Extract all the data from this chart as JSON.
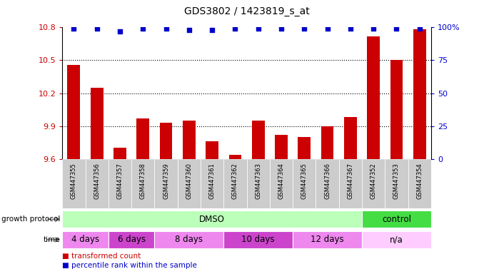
{
  "title": "GDS3802 / 1423819_s_at",
  "samples": [
    "GSM447355",
    "GSM447356",
    "GSM447357",
    "GSM447358",
    "GSM447359",
    "GSM447360",
    "GSM447361",
    "GSM447362",
    "GSM447363",
    "GSM447364",
    "GSM447365",
    "GSM447366",
    "GSM447367",
    "GSM447352",
    "GSM447353",
    "GSM447354"
  ],
  "bar_values": [
    10.46,
    10.25,
    9.7,
    9.97,
    9.93,
    9.95,
    9.76,
    9.64,
    9.95,
    9.82,
    9.8,
    9.9,
    9.98,
    10.72,
    10.5,
    10.78
  ],
  "percentile_values": [
    99,
    99,
    97,
    99,
    99,
    98,
    98,
    99,
    99,
    99,
    99,
    99,
    99,
    99,
    99,
    99
  ],
  "ylim_left": [
    9.6,
    10.8
  ],
  "ylim_right": [
    0,
    100
  ],
  "yticks_left": [
    9.6,
    9.9,
    10.2,
    10.5,
    10.8
  ],
  "yticks_right": [
    0,
    25,
    50,
    75,
    100
  ],
  "ytick_labels_right": [
    "0",
    "25",
    "50",
    "75",
    "100%"
  ],
  "bar_color": "#cc0000",
  "dot_color": "#0000cc",
  "bar_width": 0.55,
  "bg_color": "#ffffff",
  "tick_bg_color": "#cccccc",
  "growth_protocol_groups": [
    {
      "label": "DMSO",
      "start": 0,
      "end": 12,
      "color": "#bbffbb"
    },
    {
      "label": "control",
      "start": 13,
      "end": 15,
      "color": "#44dd44"
    }
  ],
  "time_groups": [
    {
      "label": "4 days",
      "start": 0,
      "end": 1,
      "color": "#ee88ee"
    },
    {
      "label": "6 days",
      "start": 2,
      "end": 3,
      "color": "#cc44cc"
    },
    {
      "label": "8 days",
      "start": 4,
      "end": 6,
      "color": "#ee88ee"
    },
    {
      "label": "10 days",
      "start": 7,
      "end": 9,
      "color": "#cc44cc"
    },
    {
      "label": "12 days",
      "start": 10,
      "end": 12,
      "color": "#ee88ee"
    },
    {
      "label": "n/a",
      "start": 13,
      "end": 15,
      "color": "#ffccff"
    }
  ],
  "legend_items": [
    {
      "label": "transformed count",
      "color": "#cc0000"
    },
    {
      "label": "percentile rank within the sample",
      "color": "#0000cc"
    }
  ],
  "growth_protocol_label": "growth protocol",
  "time_label": "time"
}
